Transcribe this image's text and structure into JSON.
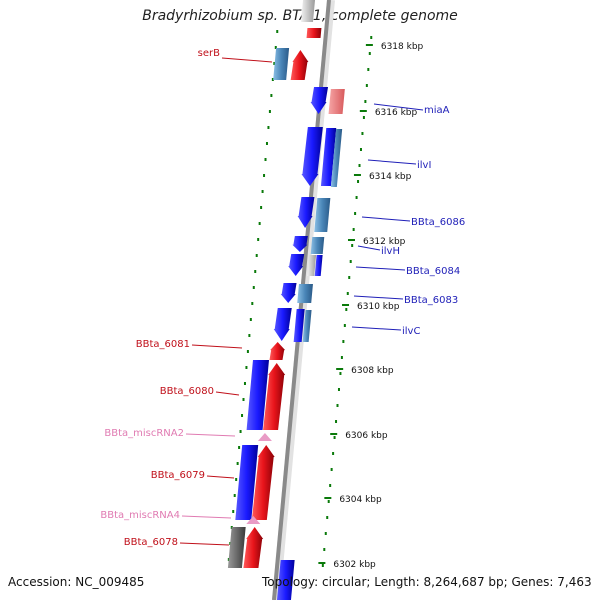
{
  "title": "Bradyrhizobium sp. BTAi1, complete genome",
  "footer": {
    "accession": "Accession: NC_009485",
    "summary": "Topology: circular; Length: 8,264,687 bp; Genes: 7,463"
  },
  "colors": {
    "gene_red": "#e8141b",
    "gene_blue": "#1a1aff",
    "gene_steel": "#4a86b8",
    "gene_salmon": "#e8787a",
    "gene_gray": "#6b6b6b",
    "misc_rna_pink": "#e99bc6",
    "label_red": "#c0101a",
    "label_blue": "#1f1fb8",
    "label_pink": "#e07bb2",
    "tick_green": "#0a7a0a",
    "backbone": "#888888"
  },
  "ticks": [
    "6318 kbp",
    "6316 kbp",
    "6314 kbp",
    "6312 kbp",
    "6310 kbp",
    "6308 kbp",
    "6306 kbp",
    "6304 kbp",
    "6302 kbp"
  ],
  "left_labels": [
    {
      "text": "serB",
      "kind": "red"
    },
    {
      "text": "BBta_6081",
      "kind": "red"
    },
    {
      "text": "BBta_6080",
      "kind": "red"
    },
    {
      "text": "BBta_miscRNA2",
      "kind": "pink"
    },
    {
      "text": "BBta_6079",
      "kind": "red"
    },
    {
      "text": "BBta_miscRNA4",
      "kind": "pink"
    },
    {
      "text": "BBta_6078",
      "kind": "red"
    }
  ],
  "right_labels": [
    {
      "text": "miaA"
    },
    {
      "text": "ilvI"
    },
    {
      "text": "BBta_6086"
    },
    {
      "text": "ilvH"
    },
    {
      "text": "BBta_6084"
    },
    {
      "text": "BBta_6083"
    },
    {
      "text": "ilvC"
    }
  ],
  "icons": {
    "gene_arrow": "gene-arrow-icon",
    "rna_marker": "misc-rna-icon"
  }
}
